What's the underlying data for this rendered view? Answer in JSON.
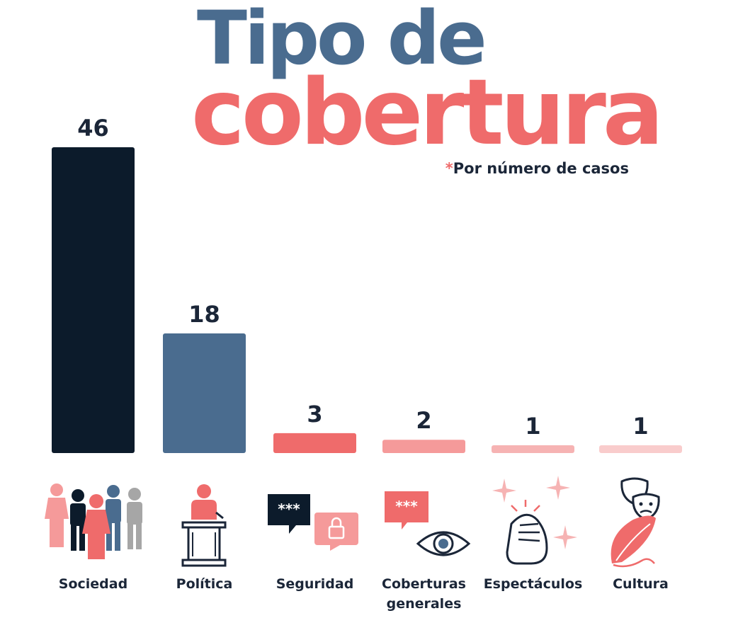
{
  "title": {
    "line1": "Tipo de",
    "line2": "cobertura"
  },
  "subtitle": {
    "star": "*",
    "text": "Por número de casos"
  },
  "chart_data": {
    "type": "bar",
    "title": "Tipo de cobertura",
    "subtitle": "*Por número de casos",
    "categories": [
      "Sociedad",
      "Política",
      "Seguridad",
      "Coberturas generales",
      "Espectáculos",
      "Cultura"
    ],
    "category_lines": [
      [
        "Sociedad"
      ],
      [
        "Política"
      ],
      [
        "Seguridad"
      ],
      [
        "Coberturas",
        "generales"
      ],
      [
        "Espectáculos"
      ],
      [
        "Cultura"
      ]
    ],
    "values": [
      46,
      18,
      3,
      2,
      1,
      1
    ],
    "colors": [
      "#0c1b2b",
      "#4a6c8f",
      "#ef6b6b",
      "#f59a9a",
      "#f6b3b3",
      "#f9cccc"
    ],
    "icons": [
      "people-group-icon",
      "podium-speaker-icon",
      "chat-lock-icon",
      "chat-eye-icon",
      "clapping-hands-icon",
      "theater-masks-feather-icon"
    ],
    "ylim": [
      0,
      46
    ],
    "xlabel": "",
    "ylabel": "",
    "grid": false
  }
}
